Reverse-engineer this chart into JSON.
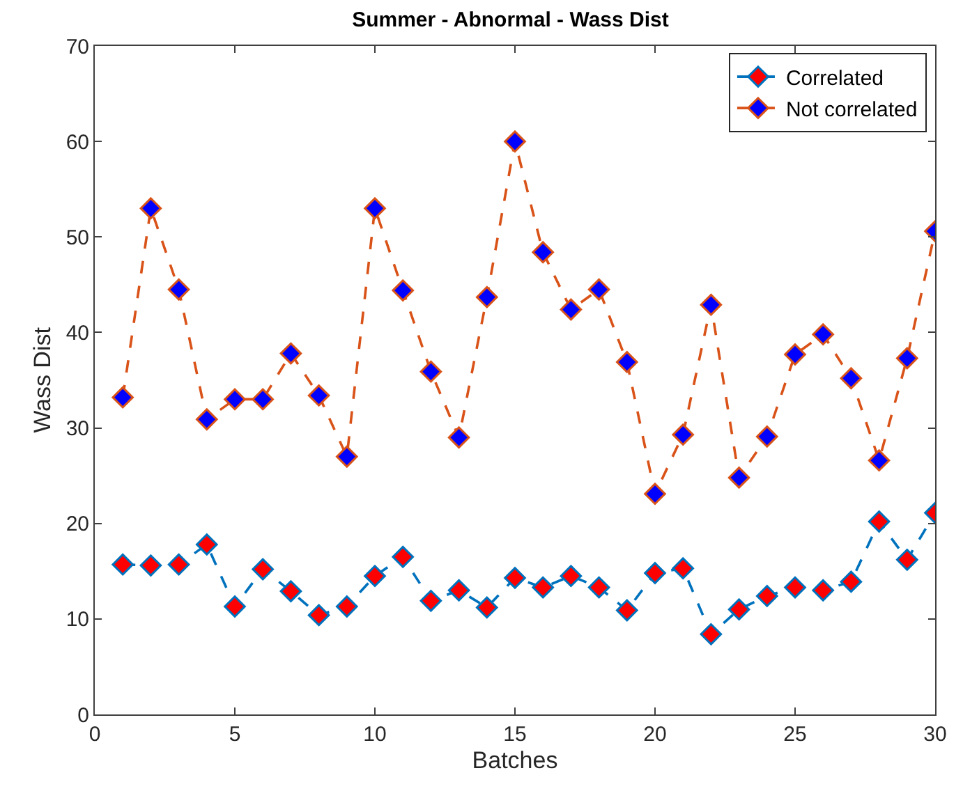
{
  "chart_data": {
    "type": "line",
    "title": "Summer - Abnormal - Wass Dist",
    "xlabel": "Batches",
    "ylabel": "Wass Dist",
    "x": [
      1,
      2,
      3,
      4,
      5,
      6,
      7,
      8,
      9,
      10,
      11,
      12,
      13,
      14,
      15,
      16,
      17,
      18,
      19,
      20,
      21,
      22,
      23,
      24,
      25,
      26,
      27,
      28,
      29,
      30
    ],
    "series": [
      {
        "name": "Correlated",
        "color": "#0072bd",
        "colors": [
          "#ff0000",
          "#ff0000",
          "#ff0000",
          "#ff0000",
          "#ff0000",
          "#ff0000",
          "#ff0000",
          "#ff0000",
          "#ff0000",
          "#ff0000",
          "#ff0000",
          "#ff0000",
          "#ff0000",
          "#ff0000",
          "#ff0000",
          "#ff0000",
          "#ff0000",
          "#ff0000",
          "#ff0000",
          "#ff0000",
          "#ff0000",
          "#ff0000",
          "#ff0000",
          "#ff0000",
          "#ff0000",
          "#ff0000",
          "#ff0000",
          "#ff0000",
          "#ff0000",
          "#ff0000"
        ],
        "values": [
          15.7,
          15.6,
          15.7,
          17.8,
          11.3,
          15.2,
          12.9,
          10.4,
          11.3,
          14.5,
          16.5,
          11.9,
          13,
          11.2,
          14.3,
          13.3,
          14.5,
          13.3,
          10.9,
          14.8,
          15.3,
          8.4,
          11,
          12.4,
          13.3,
          13,
          13.9,
          20.2,
          16.2,
          21.1
        ]
      },
      {
        "name": "Not correlated",
        "color": "#d95319",
        "colors": [
          "#0000ff",
          "#0000ff",
          "#0000ff",
          "#0000ff",
          "#0000ff",
          "#0000ff",
          "#0000ff",
          "#0000ff",
          "#0000ff",
          "#0000ff",
          "#0000ff",
          "#0000ff",
          "#0000ff",
          "#0000ff",
          "#0000ff",
          "#0000ff",
          "#0000ff",
          "#0000ff",
          "#0000ff",
          "#0000ff",
          "#0000ff",
          "#0000ff",
          "#0000ff",
          "#0000ff",
          "#0000ff",
          "#0000ff",
          "#0000ff",
          "#0000ff",
          "#0000ff",
          "#0000ff"
        ],
        "values": [
          33.2,
          53,
          44.5,
          30.9,
          33,
          33,
          37.8,
          33.4,
          27,
          53,
          44.4,
          35.9,
          29,
          43.7,
          60,
          48.4,
          42.4,
          44.5,
          36.9,
          23.1,
          29.3,
          42.9,
          24.8,
          29.1,
          37.7,
          39.8,
          35.2,
          26.6,
          37.3,
          50.6
        ]
      }
    ],
    "xlim": [
      0,
      30
    ],
    "xticks": [
      0,
      5,
      10,
      15,
      20,
      25,
      30
    ],
    "ylim": [
      0,
      70
    ],
    "yticks": [
      0,
      10,
      20,
      30,
      40,
      50,
      60,
      70
    ],
    "legend": "top right",
    "marker": "diamond",
    "line_style": "dashed"
  }
}
